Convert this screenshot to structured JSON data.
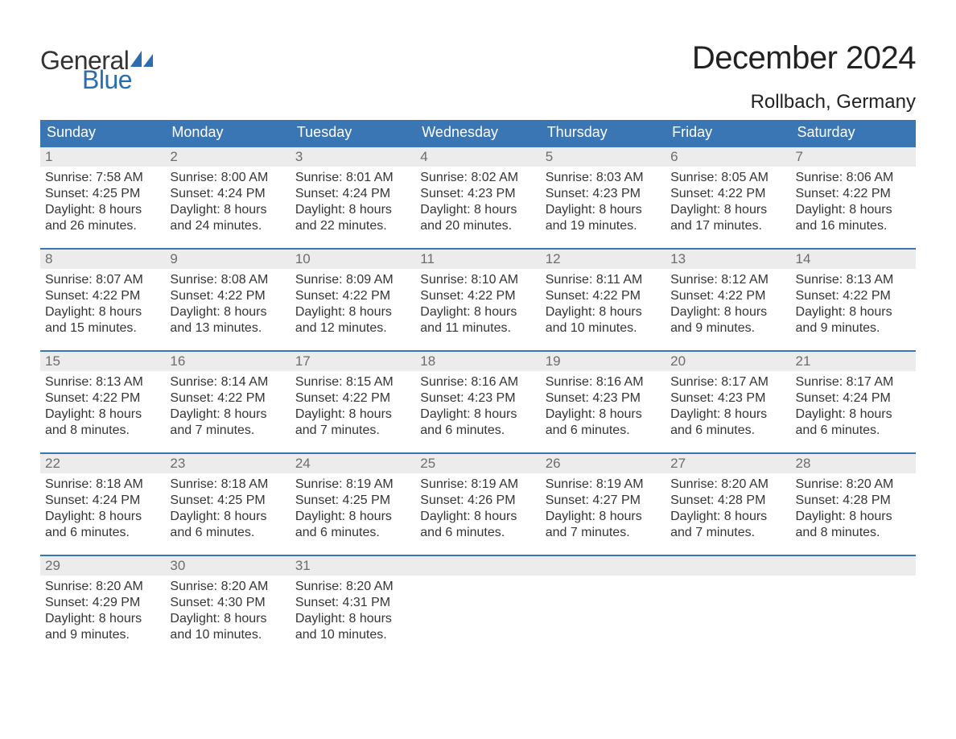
{
  "brand": {
    "word1": "General",
    "word2": "Blue",
    "text_color": "#333333",
    "accent_color": "#2a6db0"
  },
  "title": {
    "month": "December 2024",
    "location": "Rollbach, Germany"
  },
  "calendar": {
    "type": "table",
    "header_bg": "#3a76b4",
    "header_fg": "#ffffff",
    "daynum_bg": "#ececec",
    "daynum_fg": "#6d6d6d",
    "body_fg": "#353535",
    "row_divider": "#3a76b4",
    "days_of_week": [
      "Sunday",
      "Monday",
      "Tuesday",
      "Wednesday",
      "Thursday",
      "Friday",
      "Saturday"
    ],
    "weeks": [
      [
        {
          "num": "1",
          "sunrise": "Sunrise: 7:58 AM",
          "sunset": "Sunset: 4:25 PM",
          "day1": "Daylight: 8 hours",
          "day2": "and 26 minutes."
        },
        {
          "num": "2",
          "sunrise": "Sunrise: 8:00 AM",
          "sunset": "Sunset: 4:24 PM",
          "day1": "Daylight: 8 hours",
          "day2": "and 24 minutes."
        },
        {
          "num": "3",
          "sunrise": "Sunrise: 8:01 AM",
          "sunset": "Sunset: 4:24 PM",
          "day1": "Daylight: 8 hours",
          "day2": "and 22 minutes."
        },
        {
          "num": "4",
          "sunrise": "Sunrise: 8:02 AM",
          "sunset": "Sunset: 4:23 PM",
          "day1": "Daylight: 8 hours",
          "day2": "and 20 minutes."
        },
        {
          "num": "5",
          "sunrise": "Sunrise: 8:03 AM",
          "sunset": "Sunset: 4:23 PM",
          "day1": "Daylight: 8 hours",
          "day2": "and 19 minutes."
        },
        {
          "num": "6",
          "sunrise": "Sunrise: 8:05 AM",
          "sunset": "Sunset: 4:22 PM",
          "day1": "Daylight: 8 hours",
          "day2": "and 17 minutes."
        },
        {
          "num": "7",
          "sunrise": "Sunrise: 8:06 AM",
          "sunset": "Sunset: 4:22 PM",
          "day1": "Daylight: 8 hours",
          "day2": "and 16 minutes."
        }
      ],
      [
        {
          "num": "8",
          "sunrise": "Sunrise: 8:07 AM",
          "sunset": "Sunset: 4:22 PM",
          "day1": "Daylight: 8 hours",
          "day2": "and 15 minutes."
        },
        {
          "num": "9",
          "sunrise": "Sunrise: 8:08 AM",
          "sunset": "Sunset: 4:22 PM",
          "day1": "Daylight: 8 hours",
          "day2": "and 13 minutes."
        },
        {
          "num": "10",
          "sunrise": "Sunrise: 8:09 AM",
          "sunset": "Sunset: 4:22 PM",
          "day1": "Daylight: 8 hours",
          "day2": "and 12 minutes."
        },
        {
          "num": "11",
          "sunrise": "Sunrise: 8:10 AM",
          "sunset": "Sunset: 4:22 PM",
          "day1": "Daylight: 8 hours",
          "day2": "and 11 minutes."
        },
        {
          "num": "12",
          "sunrise": "Sunrise: 8:11 AM",
          "sunset": "Sunset: 4:22 PM",
          "day1": "Daylight: 8 hours",
          "day2": "and 10 minutes."
        },
        {
          "num": "13",
          "sunrise": "Sunrise: 8:12 AM",
          "sunset": "Sunset: 4:22 PM",
          "day1": "Daylight: 8 hours",
          "day2": "and 9 minutes."
        },
        {
          "num": "14",
          "sunrise": "Sunrise: 8:13 AM",
          "sunset": "Sunset: 4:22 PM",
          "day1": "Daylight: 8 hours",
          "day2": "and 9 minutes."
        }
      ],
      [
        {
          "num": "15",
          "sunrise": "Sunrise: 8:13 AM",
          "sunset": "Sunset: 4:22 PM",
          "day1": "Daylight: 8 hours",
          "day2": "and 8 minutes."
        },
        {
          "num": "16",
          "sunrise": "Sunrise: 8:14 AM",
          "sunset": "Sunset: 4:22 PM",
          "day1": "Daylight: 8 hours",
          "day2": "and 7 minutes."
        },
        {
          "num": "17",
          "sunrise": "Sunrise: 8:15 AM",
          "sunset": "Sunset: 4:22 PM",
          "day1": "Daylight: 8 hours",
          "day2": "and 7 minutes."
        },
        {
          "num": "18",
          "sunrise": "Sunrise: 8:16 AM",
          "sunset": "Sunset: 4:23 PM",
          "day1": "Daylight: 8 hours",
          "day2": "and 6 minutes."
        },
        {
          "num": "19",
          "sunrise": "Sunrise: 8:16 AM",
          "sunset": "Sunset: 4:23 PM",
          "day1": "Daylight: 8 hours",
          "day2": "and 6 minutes."
        },
        {
          "num": "20",
          "sunrise": "Sunrise: 8:17 AM",
          "sunset": "Sunset: 4:23 PM",
          "day1": "Daylight: 8 hours",
          "day2": "and 6 minutes."
        },
        {
          "num": "21",
          "sunrise": "Sunrise: 8:17 AM",
          "sunset": "Sunset: 4:24 PM",
          "day1": "Daylight: 8 hours",
          "day2": "and 6 minutes."
        }
      ],
      [
        {
          "num": "22",
          "sunrise": "Sunrise: 8:18 AM",
          "sunset": "Sunset: 4:24 PM",
          "day1": "Daylight: 8 hours",
          "day2": "and 6 minutes."
        },
        {
          "num": "23",
          "sunrise": "Sunrise: 8:18 AM",
          "sunset": "Sunset: 4:25 PM",
          "day1": "Daylight: 8 hours",
          "day2": "and 6 minutes."
        },
        {
          "num": "24",
          "sunrise": "Sunrise: 8:19 AM",
          "sunset": "Sunset: 4:25 PM",
          "day1": "Daylight: 8 hours",
          "day2": "and 6 minutes."
        },
        {
          "num": "25",
          "sunrise": "Sunrise: 8:19 AM",
          "sunset": "Sunset: 4:26 PM",
          "day1": "Daylight: 8 hours",
          "day2": "and 6 minutes."
        },
        {
          "num": "26",
          "sunrise": "Sunrise: 8:19 AM",
          "sunset": "Sunset: 4:27 PM",
          "day1": "Daylight: 8 hours",
          "day2": "and 7 minutes."
        },
        {
          "num": "27",
          "sunrise": "Sunrise: 8:20 AM",
          "sunset": "Sunset: 4:28 PM",
          "day1": "Daylight: 8 hours",
          "day2": "and 7 minutes."
        },
        {
          "num": "28",
          "sunrise": "Sunrise: 8:20 AM",
          "sunset": "Sunset: 4:28 PM",
          "day1": "Daylight: 8 hours",
          "day2": "and 8 minutes."
        }
      ],
      [
        {
          "num": "29",
          "sunrise": "Sunrise: 8:20 AM",
          "sunset": "Sunset: 4:29 PM",
          "day1": "Daylight: 8 hours",
          "day2": "and 9 minutes."
        },
        {
          "num": "30",
          "sunrise": "Sunrise: 8:20 AM",
          "sunset": "Sunset: 4:30 PM",
          "day1": "Daylight: 8 hours",
          "day2": "and 10 minutes."
        },
        {
          "num": "31",
          "sunrise": "Sunrise: 8:20 AM",
          "sunset": "Sunset: 4:31 PM",
          "day1": "Daylight: 8 hours",
          "day2": "and 10 minutes."
        },
        {
          "empty": true
        },
        {
          "empty": true
        },
        {
          "empty": true
        },
        {
          "empty": true
        }
      ]
    ]
  }
}
